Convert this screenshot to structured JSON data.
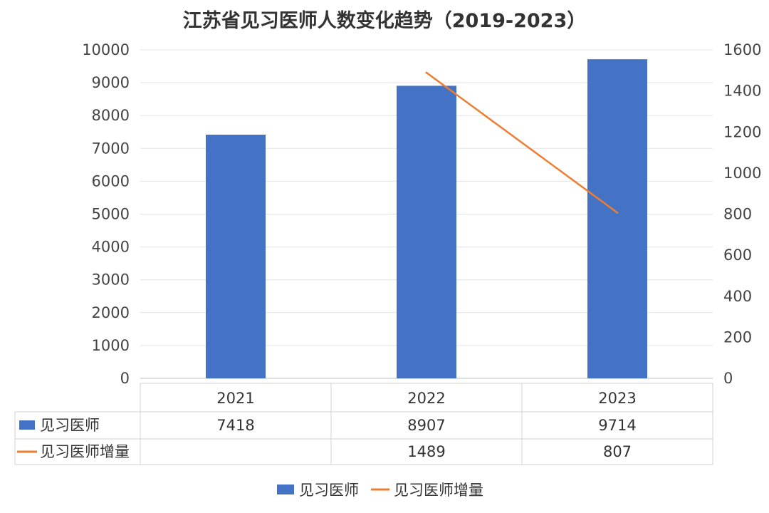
{
  "chart_data": {
    "type": "bar",
    "title": "江苏省见习医师人数变化趋势（2019-2023）",
    "categories": [
      "2021",
      "2022",
      "2023"
    ],
    "series": [
      {
        "name": "见习医师",
        "type": "bar",
        "axis": "left",
        "values": [
          7418,
          8907,
          9714
        ],
        "color": "#4472C4"
      },
      {
        "name": "见习医师增量",
        "type": "line",
        "axis": "right",
        "values": [
          null,
          1489,
          807
        ],
        "color": "#ED7D31"
      }
    ],
    "y_left": {
      "min": 0,
      "max": 10000,
      "step": 1000,
      "ticks": [
        "0",
        "1000",
        "2000",
        "3000",
        "4000",
        "5000",
        "6000",
        "7000",
        "8000",
        "9000",
        "10000"
      ]
    },
    "y_right": {
      "min": 0,
      "max": 1600,
      "step": 200,
      "ticks": [
        "0",
        "200",
        "400",
        "600",
        "800",
        "1000",
        "1200",
        "1400",
        "1600"
      ]
    },
    "grid": true,
    "data_table": {
      "rows": [
        {
          "label": "见习医师",
          "cells": [
            "7418",
            "8907",
            "9714"
          ]
        },
        {
          "label": "见习医师增量",
          "cells": [
            "",
            "1489",
            "807"
          ]
        }
      ]
    },
    "legend": {
      "placement": "bottom",
      "entries": [
        "见习医师",
        "见习医师增量"
      ]
    }
  }
}
